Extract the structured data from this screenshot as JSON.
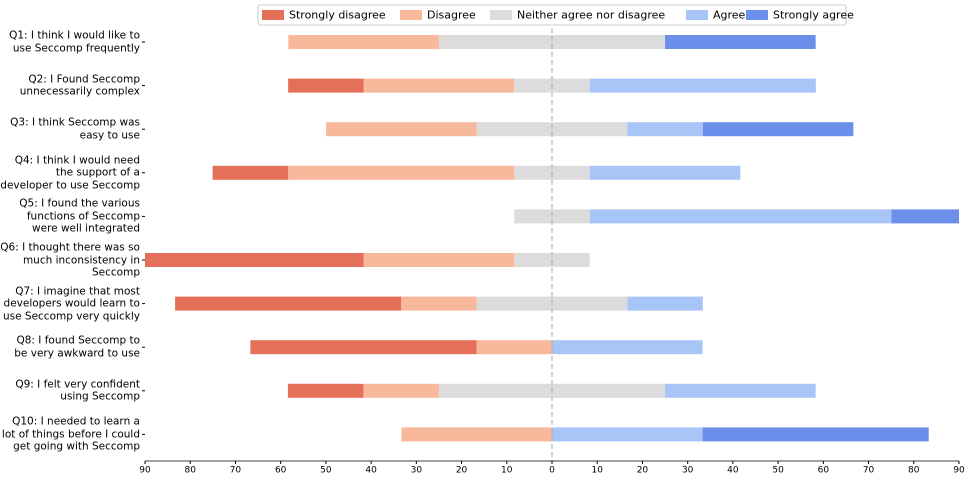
{
  "chart_data": {
    "type": "diverging-bar",
    "categories": [
      "Q1: I think I would like to use Seccomp frequently",
      "Q2: I Found Seccomp unnecessarily complex",
      "Q3: I think Seccomp was easy to use",
      "Q4: I think I would need the support of a developer to use Seccomp",
      "Q5: I found the various functions of Seccomp were well integrated",
      "Q6: I thought there was so much inconsistency in Seccomp",
      "Q7: I imagine that most developers would learn to use Seccomp very quickly",
      "Q8: I found Seccomp to be very awkward to use",
      "Q9: I felt very confident using Seccomp",
      "Q10: I needed to learn a lot of things before I could get going with Seccomp"
    ],
    "series": [
      {
        "name": "Strongly disagree",
        "color": "#e5705a",
        "values": [
          0,
          16.7,
          0,
          16.7,
          0,
          50,
          50,
          50,
          16.7,
          0
        ]
      },
      {
        "name": "Disagree",
        "color": "#f7b89c",
        "values": [
          33.3,
          33.3,
          33.3,
          50,
          0,
          33.3,
          16.7,
          16.7,
          16.7,
          33.3
        ]
      },
      {
        "name": "Neither agree nor disagree",
        "color": "#dcdcdc",
        "values": [
          50,
          16.7,
          33.3,
          16.7,
          16.7,
          16.7,
          33.3,
          0,
          50,
          0
        ]
      },
      {
        "name": "Agree",
        "color": "#a8c5f7",
        "values": [
          0,
          50,
          16.7,
          33.3,
          66.7,
          0,
          16.7,
          33.3,
          33.3,
          33.3
        ]
      },
      {
        "name": "Strongly agree",
        "color": "#6b8fea",
        "values": [
          33.3,
          0,
          33.3,
          0,
          16.7,
          0,
          0,
          0,
          0,
          50
        ]
      }
    ],
    "xlim": [
      -90,
      90
    ],
    "xticks": [
      {
        "value": -90,
        "label": "90"
      },
      {
        "value": -80,
        "label": "80"
      },
      {
        "value": -70,
        "label": "70"
      },
      {
        "value": -60,
        "label": "60"
      },
      {
        "value": -50,
        "label": "50"
      },
      {
        "value": -40,
        "label": "40"
      },
      {
        "value": -30,
        "label": "30"
      },
      {
        "value": -20,
        "label": "20"
      },
      {
        "value": -10,
        "label": "10"
      },
      0,
      10,
      20,
      30,
      40,
      50,
      60,
      70,
      80,
      90
    ]
  }
}
